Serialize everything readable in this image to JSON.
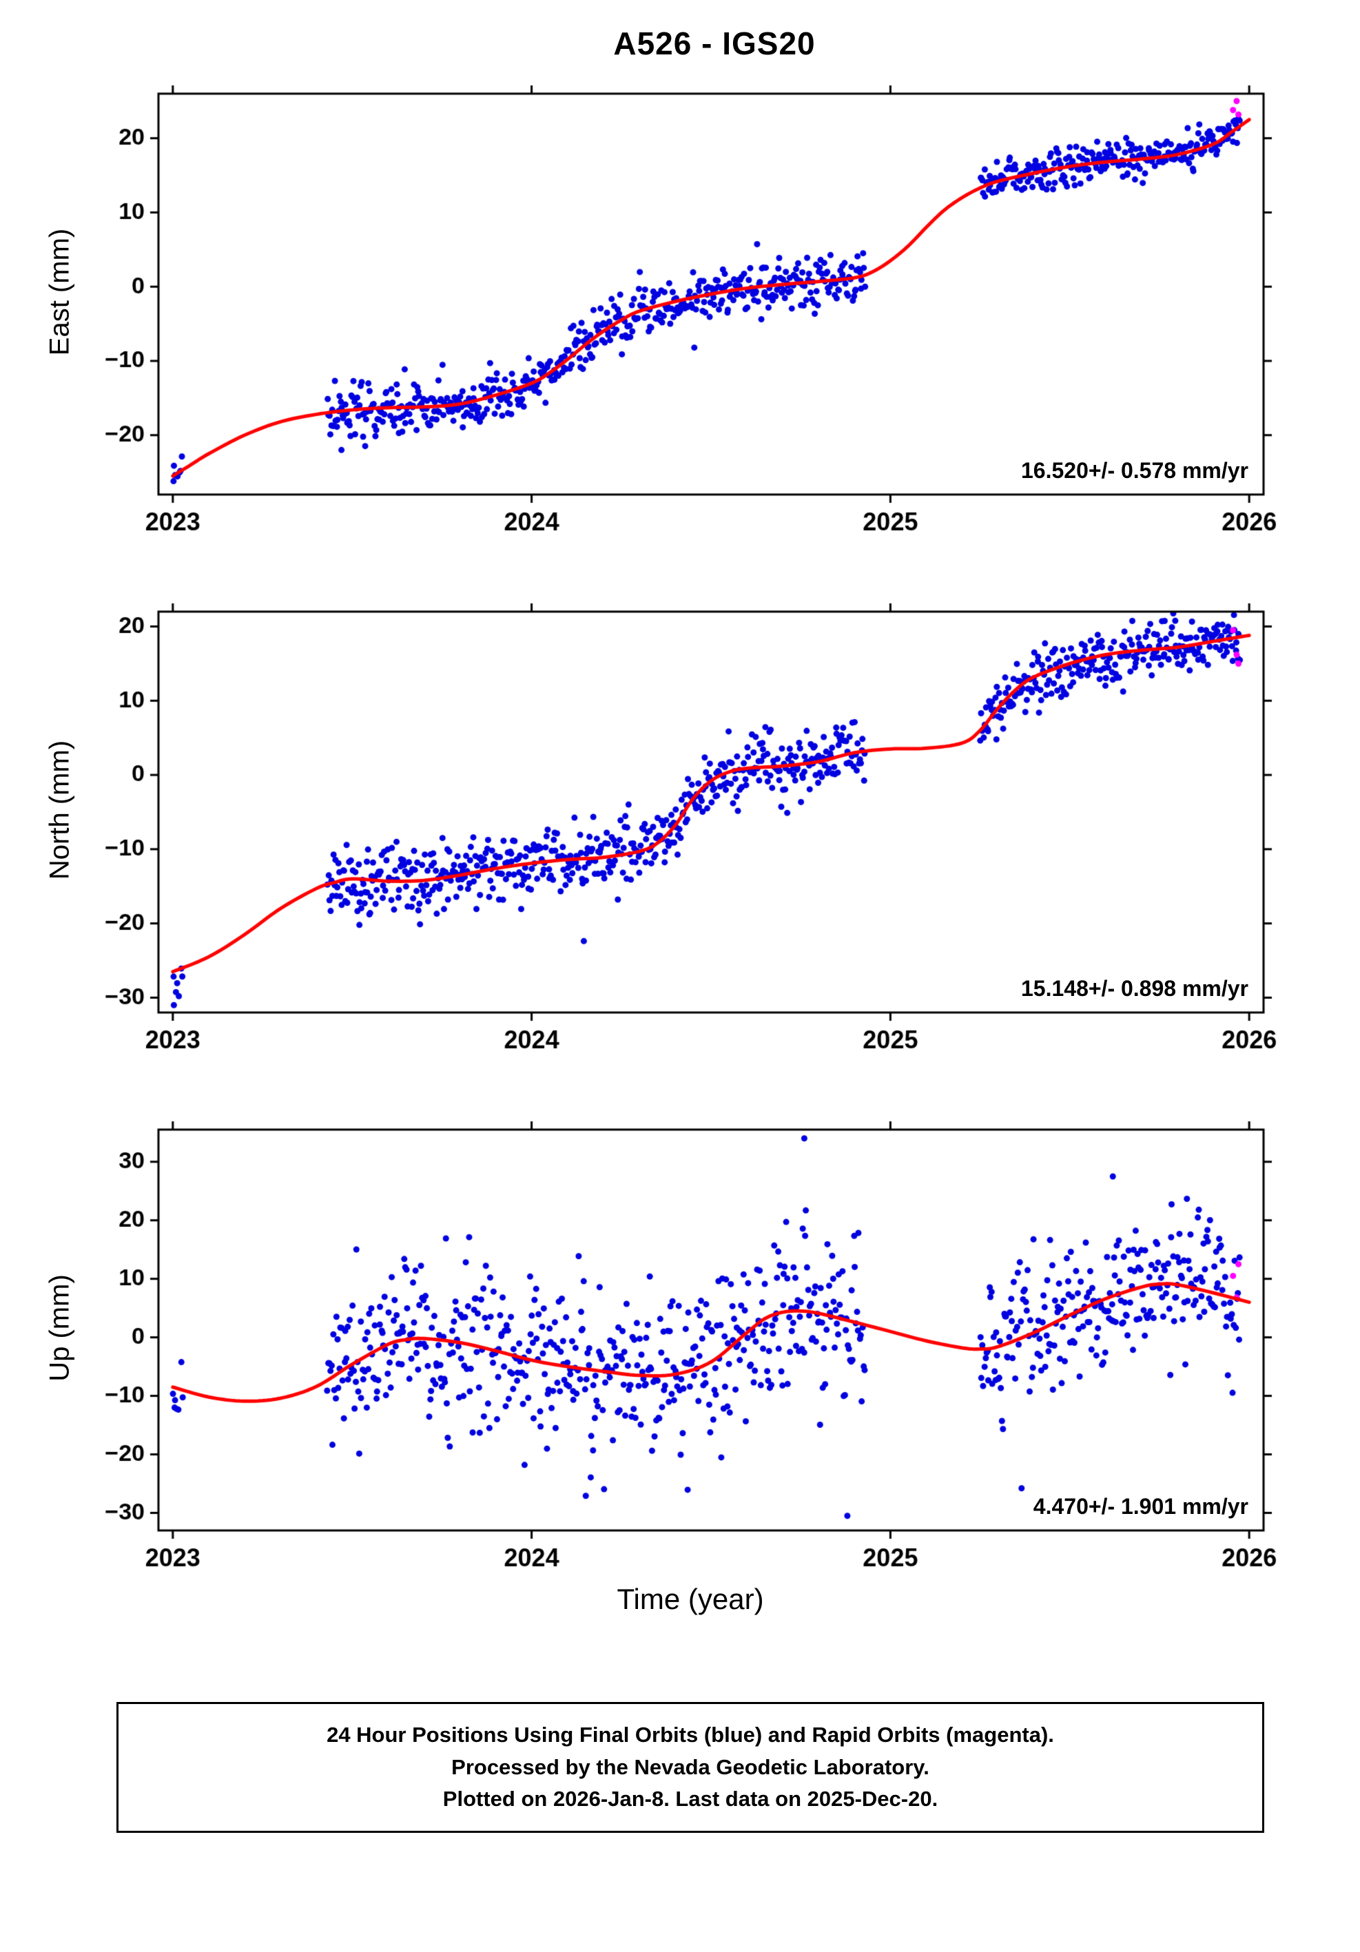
{
  "page": {
    "title": "A526 - IGS20",
    "xlabel": "Time (year)"
  },
  "footer": {
    "lines": [
      "24 Hour Positions Using Final Orbits (blue) and Rapid Orbits (magenta).",
      "Processed by the Nevada Geodetic Laboratory.",
      "Plotted on 2026-Jan-8. Last data on 2025-Dec-20."
    ]
  },
  "colors": {
    "point": "#0000e0",
    "rapid_point": "#ff00ff",
    "trend": "#ff0000",
    "axis": "#000000",
    "background": "#ffffff"
  },
  "chart_data": [
    {
      "type": "scatter",
      "ylabel": "East (mm)",
      "annotation": "16.520+/- 0.578 mm/yr",
      "xlim": [
        2022.96,
        2026.04
      ],
      "ylim": [
        -28,
        26
      ],
      "xticks": [
        2023,
        2024,
        2025,
        2026
      ],
      "yticks": [
        -20,
        -10,
        0,
        10,
        20
      ],
      "trend": {
        "x": [
          2023.0,
          2023.05,
          2023.1,
          2023.2,
          2023.3,
          2023.4,
          2023.5,
          2023.6,
          2023.7,
          2023.8,
          2023.9,
          2024.0,
          2024.05,
          2024.1,
          2024.15,
          2024.2,
          2024.25,
          2024.3,
          2024.4,
          2024.5,
          2024.6,
          2024.7,
          2024.8,
          2024.9,
          2024.95,
          2025.0,
          2025.05,
          2025.1,
          2025.15,
          2025.2,
          2025.25,
          2025.3,
          2025.4,
          2025.5,
          2025.6,
          2025.7,
          2025.8,
          2025.9,
          2025.95,
          2026.0
        ],
        "y": [
          -25.5,
          -24.0,
          -22.5,
          -20.0,
          -18.2,
          -17.2,
          -16.6,
          -16.3,
          -16.2,
          -15.8,
          -14.6,
          -13.0,
          -11.6,
          -9.8,
          -7.8,
          -6.0,
          -4.5,
          -3.3,
          -2.0,
          -1.0,
          -0.2,
          0.3,
          0.7,
          1.2,
          2.0,
          3.5,
          5.5,
          8.0,
          10.3,
          12.0,
          13.3,
          14.2,
          15.3,
          16.2,
          16.8,
          17.2,
          17.8,
          19.2,
          20.8,
          22.5
        ]
      },
      "scatter_segments": [
        {
          "x0": 2023.0,
          "x1": 2023.03,
          "n": 6,
          "sigma": 1.0,
          "offset": 0.3,
          "seed": 101
        },
        {
          "x0": 2023.43,
          "x1": 2024.93,
          "n": 540,
          "sigma": 1.7,
          "offset": 0.0,
          "seed": 102
        },
        {
          "x0": 2025.25,
          "x1": 2025.975,
          "n": 265,
          "sigma": 1.3,
          "offset": 0.0,
          "seed": 103
        }
      ],
      "extra_points": [
        [
          2023.002,
          -26.2
        ],
        [
          2023.47,
          -22.0
        ],
        [
          2025.955,
          23.8,
          "#ff00ff"
        ],
        [
          2025.965,
          25.0,
          "#ff00ff"
        ],
        [
          2025.97,
          23.2,
          "#ff00ff"
        ]
      ]
    },
    {
      "type": "scatter",
      "ylabel": "North (mm)",
      "annotation": "15.148+/- 0.898 mm/yr",
      "xlim": [
        2022.96,
        2026.04
      ],
      "ylim": [
        -32,
        22
      ],
      "xticks": [
        2023,
        2024,
        2025,
        2026
      ],
      "yticks": [
        -30,
        -20,
        -10,
        0,
        10,
        20
      ],
      "trend": {
        "x": [
          2023.0,
          2023.1,
          2023.2,
          2023.3,
          2023.4,
          2023.45,
          2023.5,
          2023.6,
          2023.7,
          2023.8,
          2023.9,
          2024.0,
          2024.1,
          2024.2,
          2024.3,
          2024.35,
          2024.4,
          2024.45,
          2024.5,
          2024.55,
          2024.6,
          2024.7,
          2024.8,
          2024.9,
          2025.0,
          2025.1,
          2025.2,
          2025.25,
          2025.3,
          2025.35,
          2025.4,
          2025.5,
          2025.6,
          2025.7,
          2025.8,
          2025.9,
          2026.0
        ],
        "y": [
          -26.5,
          -24.5,
          -21.5,
          -18.0,
          -15.3,
          -14.5,
          -14.0,
          -14.3,
          -14.2,
          -13.5,
          -12.6,
          -11.9,
          -11.4,
          -11.1,
          -10.3,
          -9.2,
          -6.8,
          -3.2,
          -0.8,
          0.4,
          0.9,
          1.2,
          1.8,
          3.0,
          3.5,
          3.6,
          4.3,
          6.0,
          9.0,
          11.5,
          13.2,
          15.0,
          16.2,
          16.8,
          17.2,
          18.0,
          18.8
        ]
      },
      "scatter_segments": [
        {
          "x0": 2023.0,
          "x1": 2023.03,
          "n": 6,
          "sigma": 1.6,
          "offset": -2.0,
          "seed": 201
        },
        {
          "x0": 2023.43,
          "x1": 2024.93,
          "n": 540,
          "sigma": 2.3,
          "offset": 0.0,
          "seed": 202
        },
        {
          "x0": 2025.25,
          "x1": 2025.975,
          "n": 265,
          "sigma": 1.9,
          "offset": 0.0,
          "seed": 203
        }
      ],
      "extra_points": [
        [
          2023.003,
          -31.0
        ],
        [
          2023.55,
          -18.6
        ],
        [
          2023.52,
          -20.2
        ],
        [
          2025.955,
          19.5,
          "#ff00ff"
        ],
        [
          2025.965,
          16.2,
          "#ff00ff"
        ],
        [
          2025.97,
          15.0,
          "#ff00ff"
        ]
      ]
    },
    {
      "type": "scatter",
      "ylabel": "Up (mm)",
      "annotation": "4.470+/- 1.901 mm/yr",
      "xlim": [
        2022.96,
        2026.04
      ],
      "ylim": [
        -33,
        35.5
      ],
      "xticks": [
        2023,
        2024,
        2025,
        2026
      ],
      "yticks": [
        -30,
        -20,
        -10,
        0,
        10,
        20,
        30
      ],
      "trend": {
        "x": [
          2023.0,
          2023.1,
          2023.2,
          2023.3,
          2023.4,
          2023.5,
          2023.6,
          2023.65,
          2023.7,
          2023.8,
          2023.9,
          2024.0,
          2024.1,
          2024.2,
          2024.3,
          2024.4,
          2024.5,
          2024.6,
          2024.65,
          2024.7,
          2024.75,
          2024.8,
          2024.9,
          2025.0,
          2025.1,
          2025.2,
          2025.25,
          2025.3,
          2025.4,
          2025.5,
          2025.6,
          2025.7,
          2025.75,
          2025.8,
          2025.9,
          2026.0
        ],
        "y": [
          -8.5,
          -10.2,
          -10.9,
          -10.4,
          -8.4,
          -4.6,
          -1.2,
          -0.4,
          -0.2,
          -0.9,
          -2.3,
          -3.9,
          -5.0,
          -5.8,
          -6.5,
          -6.3,
          -4.2,
          0.8,
          3.2,
          4.3,
          4.5,
          4.1,
          2.6,
          1.0,
          -0.6,
          -1.8,
          -2.0,
          -1.6,
          0.8,
          3.8,
          6.6,
          8.6,
          9.1,
          9.0,
          7.6,
          6.0
        ]
      },
      "scatter_segments": [
        {
          "x0": 2023.0,
          "x1": 2023.03,
          "n": 6,
          "sigma": 2.5,
          "offset": 0.0,
          "seed": 301
        },
        {
          "x0": 2023.43,
          "x1": 2024.93,
          "n": 540,
          "sigma": 6.8,
          "offset": 0.0,
          "seed": 302
        },
        {
          "x0": 2025.25,
          "x1": 2025.975,
          "n": 265,
          "sigma": 6.2,
          "offset": 0.0,
          "seed": 303
        }
      ],
      "extra_points": [
        [
          2024.76,
          34.0
        ],
        [
          2024.88,
          -30.5
        ],
        [
          2025.62,
          27.5
        ],
        [
          2023.005,
          -12.0
        ],
        [
          2025.955,
          10.5,
          "#ff00ff"
        ],
        [
          2025.965,
          6.8,
          "#ff00ff"
        ],
        [
          2025.97,
          12.5,
          "#ff00ff"
        ]
      ]
    }
  ]
}
